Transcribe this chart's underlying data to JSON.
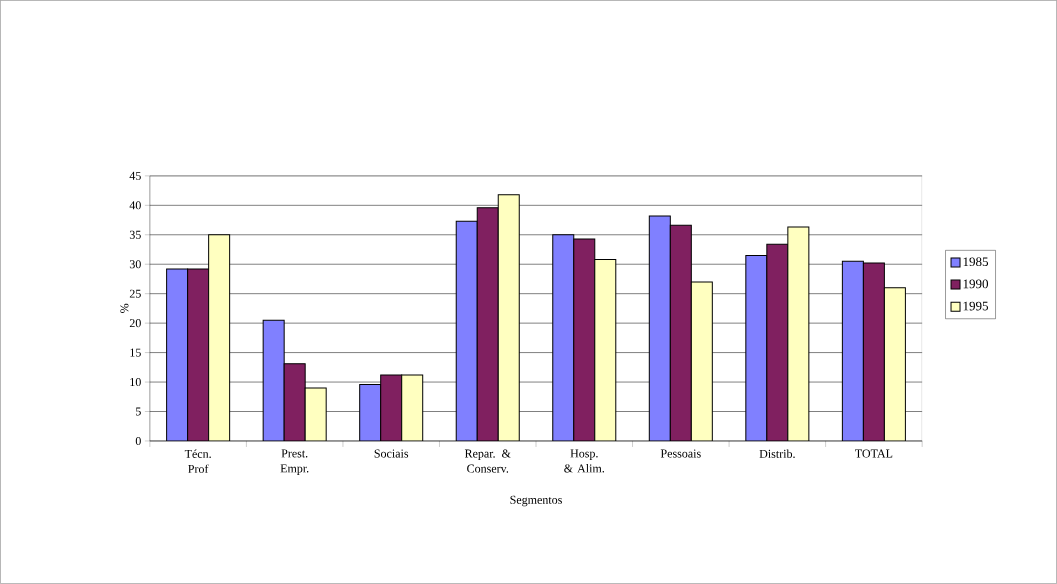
{
  "chart_data": {
    "type": "bar",
    "xlabel": "Segmentos",
    "ylabel": "%",
    "categories": [
      "Técn. Prof",
      "Prest. Empr.",
      "Sociais",
      "Repar. & Conserv.",
      "Hosp. & Alim.",
      "Pessoais",
      "Distrib.",
      "TOTAL"
    ],
    "series": [
      {
        "name": "1985",
        "color": "#8080ff",
        "values": [
          29.2,
          20.5,
          9.6,
          37.3,
          35,
          38.2,
          31.5,
          30.5
        ]
      },
      {
        "name": "1990",
        "color": "#802060",
        "values": [
          29.2,
          13.1,
          11.2,
          39.6,
          34.3,
          36.6,
          33.4,
          30.2
        ]
      },
      {
        "name": "1995",
        "color": "#ffffc0",
        "values": [
          35,
          9,
          11.2,
          41.8,
          30.8,
          27,
          36.3,
          26
        ]
      }
    ],
    "ylim": [
      0,
      45
    ],
    "yticks": [
      0,
      5,
      10,
      15,
      20,
      25,
      30,
      35,
      40,
      45
    ],
    "grid": "y",
    "legend": "right"
  }
}
